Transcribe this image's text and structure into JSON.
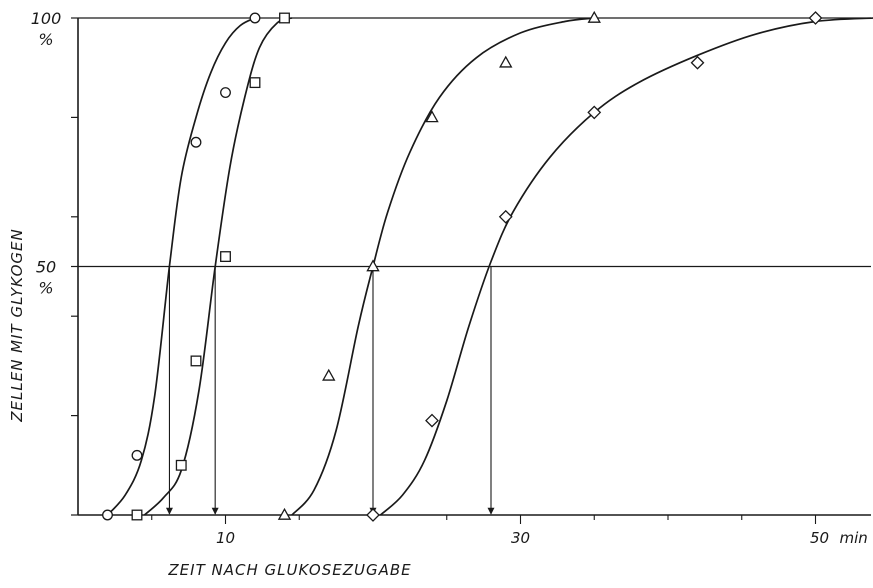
{
  "chart_data": {
    "type": "scatter",
    "xlabel": "ZEIT NACH GLUKOSEZUGABE",
    "ylabel": "ZELLEN MIT GLYKOGEN",
    "x_unit": "min",
    "y_unit": "%",
    "xlim": [
      0,
      54
    ],
    "ylim": [
      0,
      100
    ],
    "x_ticks": [
      10,
      30,
      50
    ],
    "x_tick_labels": [
      "10",
      "30",
      "50"
    ],
    "y_ticks": [
      0,
      20,
      40,
      50,
      60,
      80,
      100
    ],
    "y_tick_labels": [
      {
        "value": 100,
        "text": "100"
      },
      {
        "value": 50,
        "text": "50"
      }
    ],
    "grid": false,
    "reference_line_y": 50,
    "series": [
      {
        "marker": "circle",
        "points": [
          [
            2,
            0
          ],
          [
            4,
            12
          ],
          [
            8,
            75
          ],
          [
            10,
            85
          ],
          [
            12,
            100
          ]
        ],
        "curve": [
          [
            2,
            0
          ],
          [
            3.2,
            4
          ],
          [
            4.3,
            11
          ],
          [
            5.2,
            24
          ],
          [
            6.2,
            50
          ],
          [
            7,
            68
          ],
          [
            8,
            80
          ],
          [
            9,
            89
          ],
          [
            10,
            95
          ],
          [
            11,
            98.5
          ],
          [
            12,
            100
          ]
        ],
        "x50": 6.2
      },
      {
        "marker": "square",
        "points": [
          [
            4,
            0
          ],
          [
            7,
            10
          ],
          [
            8,
            31
          ],
          [
            10,
            52
          ],
          [
            12,
            87
          ],
          [
            14,
            100
          ]
        ],
        "curve": [
          [
            4.5,
            0
          ],
          [
            5.8,
            3.5
          ],
          [
            7,
            9
          ],
          [
            8.2,
            25
          ],
          [
            9.3,
            50
          ],
          [
            10.3,
            70
          ],
          [
            11.3,
            84
          ],
          [
            12.3,
            94
          ],
          [
            13.5,
            99
          ],
          [
            14.5,
            100
          ]
        ],
        "x50": 9.3
      },
      {
        "marker": "triangle",
        "points": [
          [
            14,
            0
          ],
          [
            17,
            28
          ],
          [
            20,
            50
          ],
          [
            24,
            80
          ],
          [
            29,
            91
          ],
          [
            35,
            100
          ]
        ],
        "curve": [
          [
            14.5,
            0
          ],
          [
            16,
            5
          ],
          [
            17.5,
            17
          ],
          [
            19,
            38
          ],
          [
            20,
            50
          ],
          [
            21,
            61
          ],
          [
            22.5,
            73
          ],
          [
            24.5,
            84
          ],
          [
            27,
            92
          ],
          [
            30,
            97
          ],
          [
            33,
            99.3
          ],
          [
            35,
            100
          ]
        ],
        "x50": 20
      },
      {
        "marker": "diamond",
        "points": [
          [
            20,
            0
          ],
          [
            24,
            19
          ],
          [
            29,
            60
          ],
          [
            35,
            81
          ],
          [
            42,
            91
          ],
          [
            50,
            100
          ]
        ],
        "curve": [
          [
            20.5,
            0
          ],
          [
            22,
            4
          ],
          [
            23.5,
            11
          ],
          [
            25,
            23
          ],
          [
            26.5,
            38
          ],
          [
            28,
            51
          ],
          [
            29.5,
            61
          ],
          [
            32,
            72
          ],
          [
            35,
            81
          ],
          [
            38,
            87
          ],
          [
            42,
            92.5
          ],
          [
            46,
            96.8
          ],
          [
            50,
            99.3
          ],
          [
            54,
            100
          ]
        ],
        "x50": 28
      }
    ]
  }
}
